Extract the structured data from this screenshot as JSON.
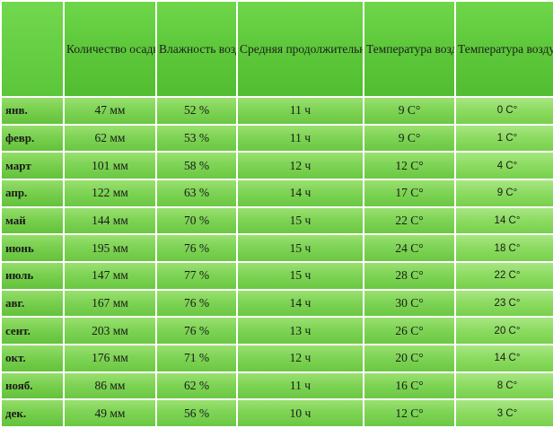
{
  "table": {
    "columns": [
      "",
      "Количество осадков",
      "Влажность воздуха",
      "Средняя продолжительность светового дня",
      "Температура воздуха днем",
      "Температура воздуха ночью"
    ],
    "rows": [
      {
        "month": "янв.",
        "precip": "47 мм",
        "humidity": "52 %",
        "daylight": "11 ч",
        "day_temp": "9 C°",
        "night_temp": "0 C°"
      },
      {
        "month": "февр.",
        "precip": "62 мм",
        "humidity": "53 %",
        "daylight": "11 ч",
        "day_temp": "9 C°",
        "night_temp": "1 C°"
      },
      {
        "month": "март",
        "precip": "101 мм",
        "humidity": "58 %",
        "daylight": "12 ч",
        "day_temp": "12 C°",
        "night_temp": "4 C°"
      },
      {
        "month": "апр.",
        "precip": "122 мм",
        "humidity": "63 %",
        "daylight": "14 ч",
        "day_temp": "17 C°",
        "night_temp": "9 C°"
      },
      {
        "month": "май",
        "precip": "144 мм",
        "humidity": "70 %",
        "daylight": "15 ч",
        "day_temp": "22 C°",
        "night_temp": "14 C°"
      },
      {
        "month": "июнь",
        "precip": "195 мм",
        "humidity": "76 %",
        "daylight": "15 ч",
        "day_temp": "24 C°",
        "night_temp": "18 C°"
      },
      {
        "month": "июль",
        "precip": "147 мм",
        "humidity": "77 %",
        "daylight": "15 ч",
        "day_temp": "28 C°",
        "night_temp": "22 C°"
      },
      {
        "month": "авг.",
        "precip": "167 мм",
        "humidity": "76 %",
        "daylight": "14 ч",
        "day_temp": "30 C°",
        "night_temp": "23 C°"
      },
      {
        "month": "сент.",
        "precip": "203 мм",
        "humidity": "76 %",
        "daylight": "13 ч",
        "day_temp": "26 C°",
        "night_temp": "20 C°"
      },
      {
        "month": "окт.",
        "precip": "176 мм",
        "humidity": "71 %",
        "daylight": "12 ч",
        "day_temp": "20 C°",
        "night_temp": "14 C°"
      },
      {
        "month": "нояб.",
        "precip": "86 мм",
        "humidity": "62 %",
        "daylight": "11 ч",
        "day_temp": "16 C°",
        "night_temp": "8 C°"
      },
      {
        "month": "дек.",
        "precip": "49 мм",
        "humidity": "56 %",
        "daylight": "10 ч",
        "day_temp": "12 C°",
        "night_temp": "3 C°"
      }
    ]
  },
  "colors": {
    "cell_green": "#7fd456",
    "header_green": "#5fc93c",
    "text": "#1a1a1a"
  }
}
